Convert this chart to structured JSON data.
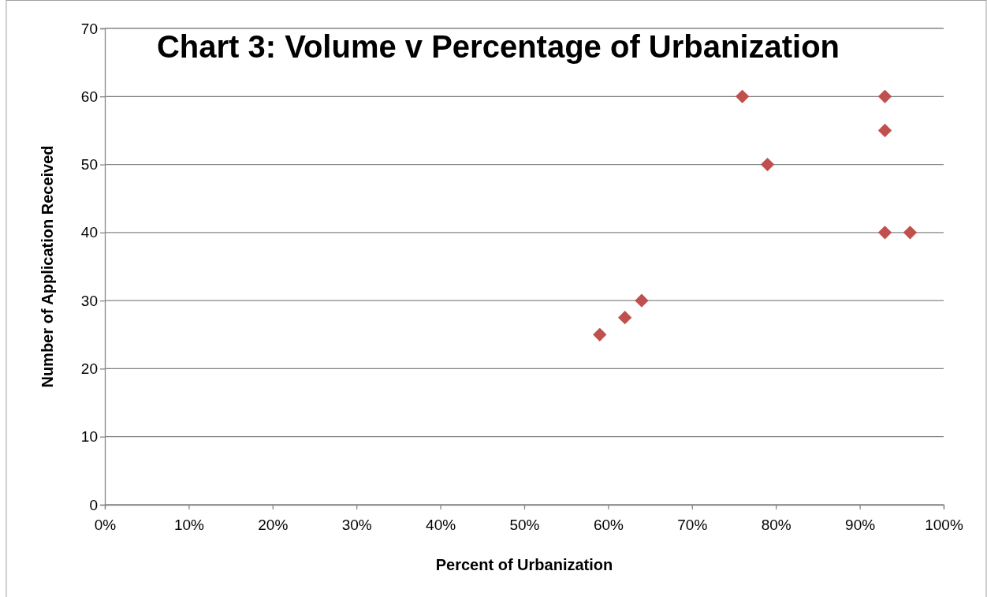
{
  "chart_data": {
    "type": "scatter",
    "title": "Chart 3: Volume v Percentage of Urbanization",
    "xlabel": "Percent of Urbanization",
    "ylabel": "Number of Application Received",
    "x": [
      59,
      62,
      64,
      76,
      79,
      93,
      93,
      93,
      96
    ],
    "values": [
      25,
      27.5,
      30,
      60,
      50,
      60,
      55,
      40,
      40
    ],
    "color": "#c0504d",
    "marker": "diamond",
    "grid": "y",
    "xlim": [
      0,
      100
    ],
    "xticks": [
      {
        "value": 0,
        "label": "0%"
      },
      {
        "value": 10,
        "label": "10%"
      },
      {
        "value": 20,
        "label": "20%"
      },
      {
        "value": 30,
        "label": "30%"
      },
      {
        "value": 40,
        "label": "40%"
      },
      {
        "value": 50,
        "label": "50%"
      },
      {
        "value": 60,
        "label": "60%"
      },
      {
        "value": 70,
        "label": "70%"
      },
      {
        "value": 80,
        "label": "80%"
      },
      {
        "value": 90,
        "label": "90%"
      },
      {
        "value": 100,
        "label": "100%"
      }
    ],
    "ylim": [
      0,
      70
    ],
    "yticks": [
      0,
      10,
      20,
      30,
      40,
      50,
      60,
      70
    ]
  }
}
